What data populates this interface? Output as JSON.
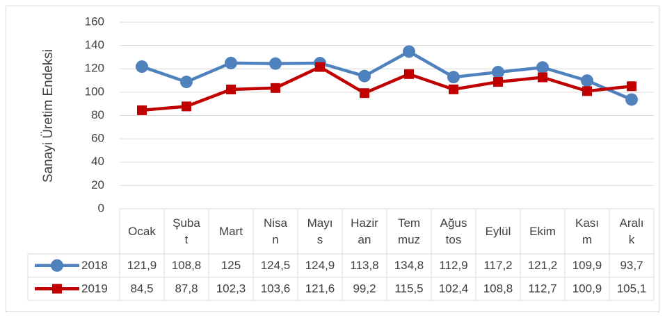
{
  "chart_data": {
    "type": "line",
    "ylabel": "Sanayi Üretim Endeksi",
    "categories": [
      "Ocak",
      "Şubat",
      "Mart",
      "Nisan",
      "Mayıs",
      "Haziran",
      "Temmuz",
      "Ağustos",
      "Eylül",
      "Ekim",
      "Kasım",
      "Aralık"
    ],
    "series": [
      {
        "name": "2018",
        "color": "#4f81bd",
        "marker": "circle",
        "values": [
          121.9,
          108.8,
          125,
          124.5,
          124.9,
          113.8,
          134.8,
          112.9,
          117.2,
          121.2,
          109.9,
          93.7
        ],
        "value_labels": [
          "121,9",
          "108,8",
          "125",
          "124,5",
          "124,9",
          "113,8",
          "134,8",
          "112,9",
          "117,2",
          "121,2",
          "109,9",
          "93,7"
        ]
      },
      {
        "name": "2019",
        "color": "#c00000",
        "marker": "square",
        "values": [
          84.5,
          87.8,
          102.3,
          103.6,
          121.6,
          99.2,
          115.5,
          102.4,
          108.8,
          112.7,
          100.9,
          105.1
        ],
        "value_labels": [
          "84,5",
          "87,8",
          "102,3",
          "103,6",
          "121,6",
          "99,2",
          "115,5",
          "102,4",
          "108,8",
          "112,7",
          "100,9",
          "105,1"
        ]
      }
    ],
    "ylim": [
      0,
      160
    ],
    "yticks": [
      0,
      20,
      40,
      60,
      80,
      100,
      120,
      140,
      160
    ],
    "grid": true
  }
}
